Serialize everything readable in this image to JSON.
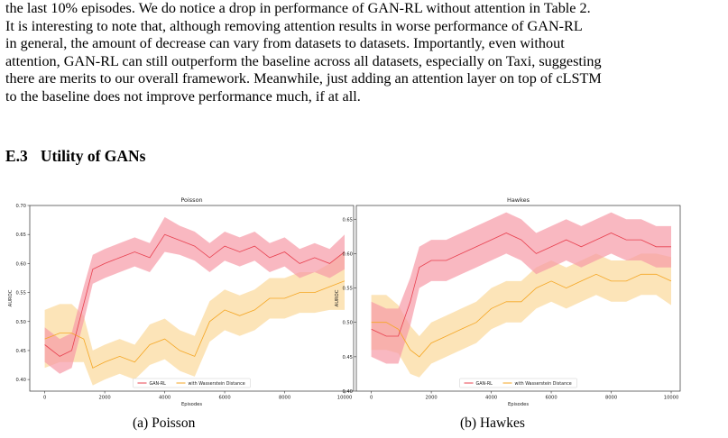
{
  "paragraph": [
    "the last 10% episodes. We do notice a drop in performance of GAN-RL without attention in Table 2.",
    "It is interesting to note that, although removing attention results in worse performance of GAN-RL",
    "in general, the amount of decrease can vary from datasets to datasets. Importantly, even without",
    "attention, GAN-RL can still outperform the baseline across all datasets, especially on Taxi, suggesting",
    "there are merits to our overall framework. Meanwhile, just adding an attention layer on top of cLSTM",
    "to the baseline does not improve performance much, if at all."
  ],
  "section": {
    "number": "E.3",
    "title": "Utility of GANs"
  },
  "captions": [
    "(a) Poisson",
    "(b) Hawkes"
  ],
  "colors": {
    "gan": "#e8404f",
    "gan_band": "#f79aa6",
    "wass": "#f5a623",
    "wass_band": "#fbd99a"
  },
  "chart_data": [
    {
      "type": "line",
      "title": "Poisson",
      "xlabel": "Episodes",
      "ylabel": "AUROC",
      "xlim": [
        -500,
        10300
      ],
      "ylim": [
        0.38,
        0.7
      ],
      "xticks": [
        0,
        2000,
        4000,
        6000,
        8000,
        10000
      ],
      "yticks": [
        0.4,
        0.45,
        0.5,
        0.55,
        0.6,
        0.65,
        0.7
      ],
      "ytick_labels": [
        "0.40",
        "0.45",
        "0.50",
        "0.55",
        "0.60",
        "0.65",
        "0.70"
      ],
      "legend_position": "lower center",
      "x": [
        0,
        500,
        900,
        1300,
        1600,
        2000,
        2500,
        3000,
        3500,
        4000,
        4500,
        5000,
        5500,
        6000,
        6500,
        7000,
        7500,
        8000,
        8500,
        9000,
        9500,
        10000
      ],
      "series": [
        {
          "name": "GAN-RL",
          "values": [
            0.46,
            0.44,
            0.45,
            0.53,
            0.59,
            0.6,
            0.61,
            0.62,
            0.61,
            0.65,
            0.64,
            0.63,
            0.61,
            0.63,
            0.62,
            0.63,
            0.61,
            0.62,
            0.6,
            0.61,
            0.6,
            0.62
          ],
          "band": [
            0.03,
            0.03,
            0.03,
            0.03,
            0.025,
            0.025,
            0.025,
            0.025,
            0.025,
            0.03,
            0.025,
            0.025,
            0.025,
            0.025,
            0.025,
            0.025,
            0.025,
            0.025,
            0.025,
            0.025,
            0.025,
            0.03
          ]
        },
        {
          "name": "with Wasserstein Distance",
          "values": [
            0.47,
            0.48,
            0.48,
            0.47,
            0.42,
            0.43,
            0.44,
            0.43,
            0.46,
            0.47,
            0.45,
            0.44,
            0.5,
            0.52,
            0.51,
            0.52,
            0.54,
            0.54,
            0.55,
            0.55,
            0.56,
            0.57
          ],
          "band": [
            0.05,
            0.05,
            0.05,
            0.04,
            0.03,
            0.03,
            0.03,
            0.03,
            0.035,
            0.035,
            0.035,
            0.035,
            0.035,
            0.035,
            0.035,
            0.035,
            0.035,
            0.035,
            0.035,
            0.035,
            0.04,
            0.05
          ]
        }
      ]
    },
    {
      "type": "line",
      "title": "Hawkes",
      "xlabel": "Episodes",
      "ylabel": "AUROC",
      "xlim": [
        -500,
        10300
      ],
      "ylim": [
        0.4,
        0.67
      ],
      "xticks": [
        0,
        2000,
        4000,
        6000,
        8000,
        10000
      ],
      "yticks": [
        0.4,
        0.45,
        0.5,
        0.55,
        0.6,
        0.65
      ],
      "ytick_labels": [
        "0.40",
        "0.45",
        "0.50",
        "0.55",
        "0.60",
        "0.65"
      ],
      "legend_position": "lower center",
      "x": [
        0,
        500,
        900,
        1300,
        1600,
        2000,
        2500,
        3000,
        3500,
        4000,
        4500,
        5000,
        5500,
        6000,
        6500,
        7000,
        7500,
        8000,
        8500,
        9000,
        9500,
        10000
      ],
      "series": [
        {
          "name": "GAN-RL",
          "values": [
            0.49,
            0.48,
            0.48,
            0.53,
            0.58,
            0.59,
            0.59,
            0.6,
            0.61,
            0.62,
            0.63,
            0.62,
            0.6,
            0.61,
            0.62,
            0.61,
            0.62,
            0.63,
            0.62,
            0.62,
            0.61,
            0.61
          ],
          "band": [
            0.04,
            0.04,
            0.04,
            0.035,
            0.03,
            0.03,
            0.03,
            0.03,
            0.03,
            0.03,
            0.03,
            0.03,
            0.03,
            0.03,
            0.03,
            0.03,
            0.03,
            0.03,
            0.03,
            0.03,
            0.03,
            0.03
          ]
        },
        {
          "name": "with Wasserstein Distance",
          "values": [
            0.5,
            0.5,
            0.49,
            0.46,
            0.45,
            0.47,
            0.48,
            0.49,
            0.5,
            0.52,
            0.53,
            0.53,
            0.55,
            0.56,
            0.55,
            0.56,
            0.57,
            0.56,
            0.56,
            0.57,
            0.57,
            0.56
          ],
          "band": [
            0.04,
            0.04,
            0.035,
            0.035,
            0.03,
            0.03,
            0.03,
            0.03,
            0.03,
            0.03,
            0.03,
            0.03,
            0.03,
            0.03,
            0.03,
            0.03,
            0.03,
            0.03,
            0.03,
            0.03,
            0.03,
            0.035
          ]
        }
      ]
    }
  ]
}
